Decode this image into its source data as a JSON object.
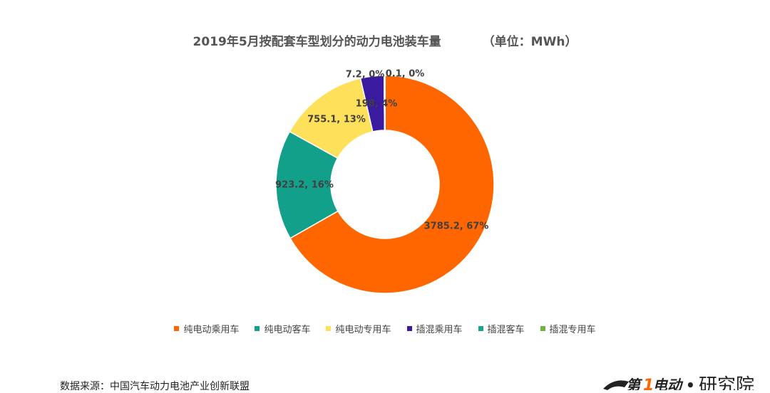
{
  "chart_data": {
    "type": "pie",
    "variant": "donut",
    "title": "2019年5月按配套车型划分的动力电池装车量",
    "unit_note": "（单位：MWh）",
    "slices": [
      {
        "name": "纯电动乘用车",
        "value": 3785.2,
        "percent": 67,
        "label": "3785.2, 67%",
        "color": "#FF6600"
      },
      {
        "name": "纯电动客车",
        "value": 923.2,
        "percent": 16,
        "label": "923.2, 16%",
        "color": "#12A08A"
      },
      {
        "name": "纯电动专用车",
        "value": 755.1,
        "percent": 13,
        "label": "755.1, 13%",
        "color": "#FFE05A"
      },
      {
        "name": "插混乘用车",
        "value": 198,
        "percent": 4,
        "label": "198, 4%",
        "color": "#3A1A9E"
      },
      {
        "name": "插混客车",
        "value": 7.2,
        "percent": 0,
        "label": "7.2, 0%",
        "color": "#17A58F"
      },
      {
        "name": "插混专用车",
        "value": 0.1,
        "percent": 0,
        "label": "0.1, 0%",
        "color": "#6CB33F"
      }
    ],
    "legend_position": "bottom"
  },
  "footer": {
    "source": "数据来源：中国汽车动力电池产业创新联盟",
    "logo_text": "第1电动 · 研究院"
  }
}
